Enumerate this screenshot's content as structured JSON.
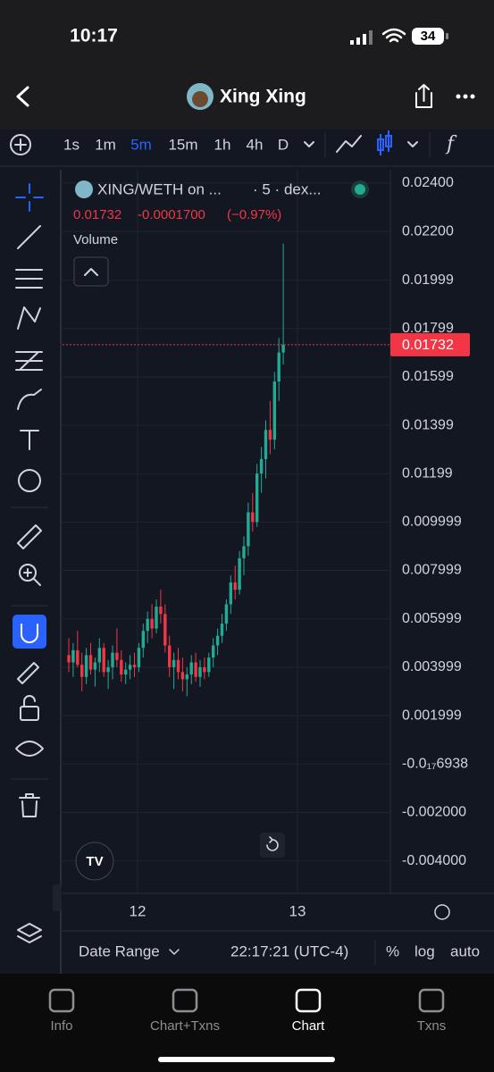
{
  "status_bar": {
    "time": "10:17",
    "battery": "34"
  },
  "header": {
    "title": "Xing Xing"
  },
  "toolbar": {
    "timeframes": [
      "1s",
      "1m",
      "5m",
      "15m",
      "1h",
      "4h",
      "D"
    ],
    "active_timeframe": "5m"
  },
  "chart": {
    "type": "candlestick",
    "symbol": "XING/WETH on ...",
    "interval": "· 5 · dex...",
    "quote": "0.01732",
    "change": "-0.0001700",
    "change_pct": "(−0.97%)",
    "indicator": "Volume",
    "up_color": "#22ab94",
    "down_color": "#f23645",
    "candles": [
      [
        0.0045,
        0.0052,
        0.0038,
        0.0042
      ],
      [
        0.0042,
        0.005,
        0.0036,
        0.0047
      ],
      [
        0.0047,
        0.0055,
        0.004,
        0.0041
      ],
      [
        0.0041,
        0.0046,
        0.003,
        0.0036
      ],
      [
        0.0036,
        0.0048,
        0.0033,
        0.0045
      ],
      [
        0.0045,
        0.005,
        0.0037,
        0.0039
      ],
      [
        0.0039,
        0.0044,
        0.0032,
        0.0042
      ],
      [
        0.0042,
        0.0052,
        0.0038,
        0.0048
      ],
      [
        0.0048,
        0.005,
        0.0036,
        0.0038
      ],
      [
        0.0038,
        0.0043,
        0.0031,
        0.004
      ],
      [
        0.004,
        0.0049,
        0.0035,
        0.0046
      ],
      [
        0.0046,
        0.0056,
        0.004,
        0.0043
      ],
      [
        0.0043,
        0.0047,
        0.0034,
        0.0037
      ],
      [
        0.0037,
        0.0042,
        0.0033,
        0.0039
      ],
      [
        0.0039,
        0.0045,
        0.0035,
        0.0041
      ],
      [
        0.0041,
        0.0046,
        0.0036,
        0.004
      ],
      [
        0.004,
        0.005,
        0.0038,
        0.0048
      ],
      [
        0.0048,
        0.0058,
        0.0044,
        0.0055
      ],
      [
        0.0055,
        0.0063,
        0.005,
        0.006
      ],
      [
        0.006,
        0.0066,
        0.0052,
        0.0056
      ],
      [
        0.0056,
        0.0068,
        0.0054,
        0.0065
      ],
      [
        0.0065,
        0.0072,
        0.0058,
        0.0062
      ],
      [
        0.0062,
        0.0066,
        0.0046,
        0.0049
      ],
      [
        0.0049,
        0.0053,
        0.0036,
        0.004
      ],
      [
        0.004,
        0.0046,
        0.0031,
        0.0043
      ],
      [
        0.0043,
        0.0048,
        0.0035,
        0.0038
      ],
      [
        0.0038,
        0.0044,
        0.003,
        0.0035
      ],
      [
        0.0035,
        0.004,
        0.0028,
        0.0037
      ],
      [
        0.0037,
        0.0045,
        0.0033,
        0.0042
      ],
      [
        0.0042,
        0.0046,
        0.0034,
        0.0036
      ],
      [
        0.0036,
        0.0043,
        0.0032,
        0.004
      ],
      [
        0.004,
        0.0044,
        0.0035,
        0.0038
      ],
      [
        0.0038,
        0.0046,
        0.0036,
        0.0044
      ],
      [
        0.0044,
        0.0052,
        0.004,
        0.0049
      ],
      [
        0.0049,
        0.0056,
        0.0045,
        0.0053
      ],
      [
        0.0053,
        0.0062,
        0.005,
        0.0058
      ],
      [
        0.0058,
        0.0068,
        0.0055,
        0.0066
      ],
      [
        0.0066,
        0.0078,
        0.0062,
        0.0075
      ],
      [
        0.0075,
        0.0082,
        0.0068,
        0.0072
      ],
      [
        0.0072,
        0.0088,
        0.007,
        0.0085
      ],
      [
        0.0085,
        0.0094,
        0.0078,
        0.009
      ],
      [
        0.009,
        0.0108,
        0.0086,
        0.0104
      ],
      [
        0.0104,
        0.0112,
        0.0096,
        0.01
      ],
      [
        0.01,
        0.0124,
        0.0098,
        0.012
      ],
      [
        0.012,
        0.0131,
        0.0112,
        0.0126
      ],
      [
        0.0126,
        0.0142,
        0.0118,
        0.0138
      ],
      [
        0.0138,
        0.015,
        0.0128,
        0.0134
      ],
      [
        0.0134,
        0.0162,
        0.013,
        0.0158
      ],
      [
        0.0158,
        0.0176,
        0.015,
        0.017
      ],
      [
        0.017,
        0.0215,
        0.0165,
        0.01732
      ]
    ],
    "last_price": 0.01732,
    "ylim": [
      -0.00534,
      0.02455
    ],
    "yticks": [
      {
        "value": 0.024,
        "label": "0.02400"
      },
      {
        "value": 0.022,
        "label": "0.02200"
      },
      0.01999,
      0.01799,
      0.01599,
      0.01399,
      0.01199,
      0.009999,
      0.007999,
      0.005999,
      0.003999,
      0.001999,
      {
        "value": -6.938e-18,
        "label": "-0.0₁₇6938"
      },
      {
        "value": -0.002,
        "label": "-0.002000"
      },
      {
        "value": -0.004,
        "label": "-0.004000"
      }
    ],
    "xticks": [
      "12",
      "13"
    ],
    "grid": true
  },
  "bottom_bar": {
    "date_range": "Date Range",
    "time": "22:17:21 (UTC-4)",
    "percent": "%",
    "log": "log",
    "auto": "auto"
  },
  "tabs": [
    "Info",
    "Chart+Txns",
    "Chart",
    "Txns"
  ],
  "active_tab": "Chart"
}
